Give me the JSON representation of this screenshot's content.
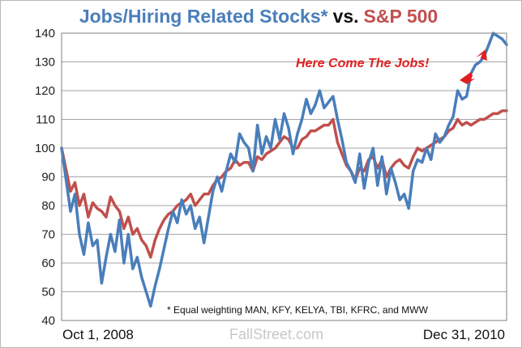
{
  "chart_data": {
    "type": "line",
    "title_parts": [
      "Jobs/Hiring Related Stocks*",
      "vs.",
      "S&P 500"
    ],
    "ylim": [
      40,
      140
    ],
    "yticks": [
      40,
      50,
      60,
      70,
      80,
      90,
      100,
      110,
      120,
      130,
      140
    ],
    "x_start_label": "Oct 1, 2008",
    "x_end_label": "Dec 31, 2010",
    "x_range": [
      0,
      100
    ],
    "grid": true,
    "series": [
      {
        "name": "Jobs/Hiring Related Stocks*",
        "color": "#4a7ebb",
        "x": [
          0,
          2,
          3,
          4,
          5,
          6,
          7,
          8,
          9,
          10,
          11,
          12,
          13,
          14,
          15,
          16,
          17,
          18,
          19,
          20,
          21,
          22,
          23,
          24,
          25,
          26,
          27,
          28,
          29,
          30,
          31,
          32,
          33,
          34,
          35,
          36,
          37,
          38,
          39,
          40,
          41,
          42,
          43,
          44,
          45,
          46,
          47,
          48,
          49,
          50,
          51,
          52,
          53,
          54,
          55,
          56,
          57,
          58,
          59,
          60,
          61,
          62,
          63,
          64,
          65,
          66,
          67,
          68,
          69,
          70,
          71,
          72,
          73,
          74,
          75,
          76,
          77,
          78,
          79,
          80,
          81,
          82,
          83,
          84,
          85,
          86,
          87,
          88,
          89,
          90,
          91,
          92,
          93,
          94,
          95,
          96,
          97,
          98,
          99,
          100
        ],
        "values": [
          100,
          78,
          84,
          70,
          63,
          74,
          66,
          68,
          53,
          62,
          70,
          64,
          75,
          60,
          70,
          58,
          62,
          55,
          50,
          45,
          52,
          58,
          65,
          72,
          78,
          74,
          82,
          77,
          80,
          72,
          76,
          67,
          76,
          85,
          90,
          85,
          92,
          98,
          95,
          105,
          102,
          100,
          92,
          108,
          98,
          104,
          100,
          110,
          103,
          112,
          107,
          98,
          105,
          110,
          117,
          112,
          115,
          120,
          114,
          116,
          118,
          110,
          103,
          95,
          92,
          88,
          98,
          86,
          95,
          100,
          87,
          97,
          84,
          93,
          88,
          82,
          84,
          79,
          92,
          96,
          95,
          100,
          96,
          105,
          102,
          104,
          108,
          111,
          120,
          117,
          118,
          126,
          129,
          130,
          132,
          136,
          140,
          139,
          138,
          136
        ]
      },
      {
        "name": "S&P 500",
        "color": "#c0504d",
        "x": [
          0,
          2,
          3,
          4,
          5,
          6,
          7,
          8,
          9,
          10,
          11,
          12,
          13,
          14,
          15,
          16,
          17,
          18,
          19,
          20,
          21,
          22,
          23,
          24,
          25,
          26,
          27,
          28,
          29,
          30,
          31,
          32,
          33,
          34,
          35,
          36,
          37,
          38,
          39,
          40,
          41,
          42,
          43,
          44,
          45,
          46,
          47,
          48,
          49,
          50,
          51,
          52,
          53,
          54,
          55,
          56,
          57,
          58,
          59,
          60,
          61,
          62,
          63,
          64,
          65,
          66,
          67,
          68,
          69,
          70,
          71,
          72,
          73,
          74,
          75,
          76,
          77,
          78,
          79,
          80,
          81,
          82,
          83,
          84,
          85,
          86,
          87,
          88,
          89,
          90,
          91,
          92,
          93,
          94,
          95,
          96,
          97,
          98,
          99,
          100
        ],
        "values": [
          100,
          85,
          88,
          80,
          84,
          76,
          81,
          79,
          78,
          76,
          83,
          80,
          78,
          72,
          76,
          70,
          72,
          68,
          66,
          62,
          68,
          72,
          75,
          77,
          78,
          80,
          81,
          82,
          84,
          80,
          82,
          84,
          84,
          87,
          89,
          90,
          92,
          93,
          96,
          94,
          95,
          95,
          92,
          97,
          96,
          98,
          99,
          100,
          102,
          104,
          103,
          100,
          100,
          103,
          104,
          106,
          106,
          107,
          108,
          108,
          110,
          102,
          98,
          94,
          92,
          89,
          93,
          92,
          96,
          97,
          93,
          96,
          90,
          93,
          95,
          96,
          94,
          93,
          97,
          100,
          99,
          100,
          101,
          102,
          103,
          104,
          106,
          107,
          110,
          108,
          109,
          108,
          109,
          110,
          110,
          111,
          112,
          112,
          113,
          113
        ]
      }
    ]
  },
  "labels": {
    "footnote": "* Equal weighting MAN, KFY, KELYA, TBI, KFRC, and MWW",
    "watermark": "FallStreet.com",
    "annotation": "Here Come The Jobs!"
  }
}
